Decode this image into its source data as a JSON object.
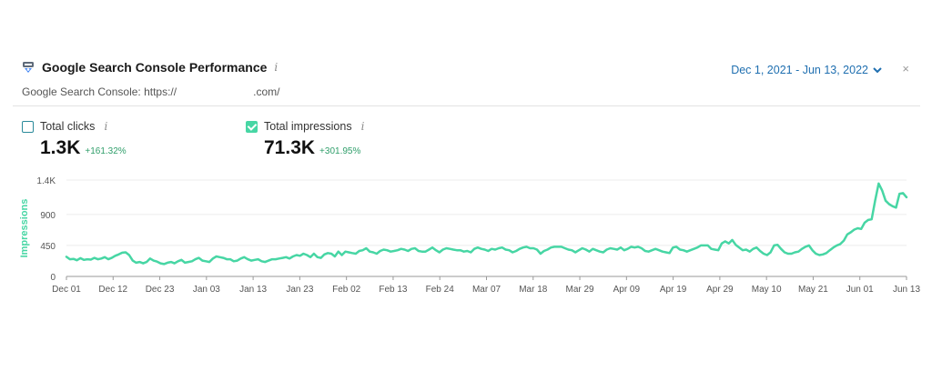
{
  "header": {
    "title": "Google Search Console Performance",
    "info_symbol": "i",
    "subtitle_prefix": "Google Search Console: https://",
    "subtitle_suffix": ".com/",
    "date_range": "Dec 1, 2021 - Jun 13, 2022",
    "close_symbol": "×"
  },
  "metrics": {
    "clicks": {
      "label": "Total clicks",
      "value": "1.3K",
      "change": "+161.32%",
      "checked": false
    },
    "impressions": {
      "label": "Total impressions",
      "value": "71.3K",
      "change": "+301.95%",
      "checked": true
    }
  },
  "colors": {
    "line": "#47d6a4",
    "accent": "#1f6fb0",
    "positive": "#2f9e6a",
    "axis_label": "#47d6a4"
  },
  "icons": {
    "app": "gsc-logo-icon",
    "chevron": "chevron-down-icon",
    "close": "close-icon"
  },
  "chart_data": {
    "type": "line",
    "ylabel": "Impressions",
    "ylim": [
      0,
      1400
    ],
    "yticks": [
      0,
      450,
      900,
      1400
    ],
    "ytick_labels": [
      "0",
      "450",
      "900",
      "1.4K"
    ],
    "xtick_labels": [
      "Dec 01",
      "Dec 12",
      "Dec 23",
      "Jan 03",
      "Jan 13",
      "Jan 23",
      "Feb 02",
      "Feb 13",
      "Feb 24",
      "Mar 07",
      "Mar 18",
      "Mar 29",
      "Apr 09",
      "Apr 19",
      "Apr 29",
      "May 10",
      "May 21",
      "Jun 01",
      "Jun 13"
    ],
    "grid": true,
    "series": [
      {
        "values": [
          285,
          250,
          255,
          235,
          265,
          240,
          250,
          245,
          270,
          250,
          260,
          280,
          250,
          270,
          300,
          320,
          345,
          350,
          310,
          230,
          200,
          210,
          190,
          210,
          260,
          230,
          215,
          190,
          180,
          200,
          210,
          190,
          220,
          240,
          200,
          210,
          220,
          250,
          270,
          230,
          220,
          210,
          260,
          290,
          280,
          270,
          250,
          250,
          220,
          230,
          260,
          280,
          250,
          230,
          240,
          250,
          220,
          210,
          230,
          250,
          250,
          260,
          270,
          280,
          260,
          290,
          310,
          300,
          330,
          310,
          280,
          330,
          280,
          270,
          320,
          340,
          330,
          290,
          360,
          310,
          360,
          350,
          340,
          330,
          370,
          380,
          410,
          360,
          350,
          330,
          370,
          390,
          380,
          360,
          370,
          380,
          400,
          390,
          370,
          400,
          410,
          370,
          360,
          360,
          390,
          420,
          380,
          350,
          390,
          410,
          400,
          390,
          380,
          380,
          360,
          370,
          350,
          400,
          420,
          400,
          390,
          370,
          400,
          390,
          410,
          420,
          390,
          380,
          350,
          370,
          400,
          420,
          430,
          410,
          410,
          390,
          330,
          370,
          390,
          420,
          430,
          430,
          430,
          410,
          390,
          380,
          350,
          380,
          410,
          390,
          360,
          400,
          380,
          360,
          350,
          390,
          410,
          400,
          390,
          420,
          380,
          400,
          430,
          420,
          430,
          410,
          370,
          360,
          380,
          400,
          380,
          360,
          350,
          340,
          420,
          430,
          390,
          380,
          360,
          380,
          400,
          420,
          450,
          450,
          450,
          400,
          390,
          380,
          480,
          510,
          480,
          530,
          460,
          420,
          380,
          390,
          360,
          400,
          420,
          370,
          330,
          310,
          350,
          450,
          460,
          400,
          350,
          330,
          330,
          350,
          360,
          400,
          430,
          450,
          380,
          330,
          310,
          320,
          340,
          380,
          420,
          450,
          470,
          520,
          610,
          640,
          680,
          700,
          690,
          780,
          820,
          830,
          1100,
          1350,
          1250,
          1100,
          1050,
          1020,
          1000,
          1200,
          1210,
          1150
        ]
      }
    ]
  }
}
